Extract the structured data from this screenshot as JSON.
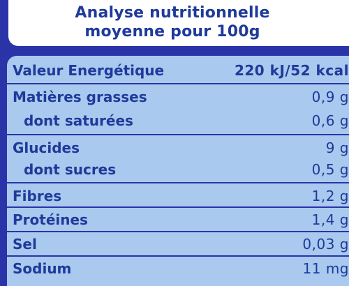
{
  "header": {
    "line1": "Analyse nutritionnelle",
    "line2": "moyenne pour 100g"
  },
  "rows": [
    {
      "label": "Valeur Energétique",
      "value": "220 kJ/52 kcal"
    },
    {
      "label": "Matières grasses",
      "value": "0,9 g"
    },
    {
      "label": "dont saturées",
      "value": "0,6 g"
    },
    {
      "label": "Glucides",
      "value": "9 g"
    },
    {
      "label": "dont sucres",
      "value": "0,5 g"
    },
    {
      "label": "Fibres",
      "value": "1,2 g"
    },
    {
      "label": "Protéines",
      "value": "1,4 g"
    },
    {
      "label": "Sel",
      "value": "0,03 g"
    },
    {
      "label": "Sodium",
      "value": "11 mg"
    }
  ],
  "colors": {
    "dark_blue": "#2a34a8",
    "light_blue": "#a9c9ef",
    "text_blue": "#1f3a9a",
    "white": "#ffffff"
  }
}
